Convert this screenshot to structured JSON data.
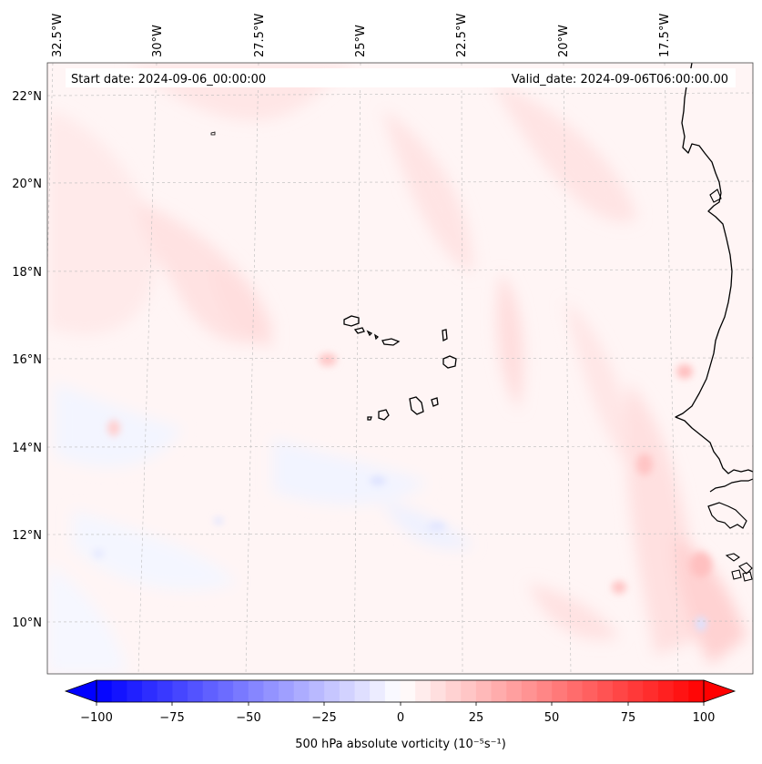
{
  "map": {
    "start_label": "Start date: 2024-09-06_00:00:00",
    "valid_label": "Valid_date: 2024-09-06T06:00:00.00",
    "lon_labels": [
      "32.5°W",
      "30°W",
      "27.5°W",
      "25°W",
      "22.5°W",
      "20°W",
      "17.5°W"
    ],
    "lat_labels": [
      "22°N",
      "20°N",
      "18°N",
      "16°N",
      "14°N",
      "12°N",
      "10°N"
    ],
    "field": "500 hPa absolute vorticity",
    "colors": {
      "negative": "#0000ff",
      "neutral": "#ffffff",
      "positive": "#ff0000",
      "coast": "#000000",
      "grid": "#bbbbbb"
    }
  },
  "colorbar": {
    "ticks": [
      "−100",
      "−75",
      "−50",
      "−25",
      "0",
      "25",
      "50",
      "75",
      "100"
    ],
    "title": "500 hPa absolute vorticity (10⁻⁵s⁻¹)",
    "range": [
      -100,
      100
    ]
  }
}
